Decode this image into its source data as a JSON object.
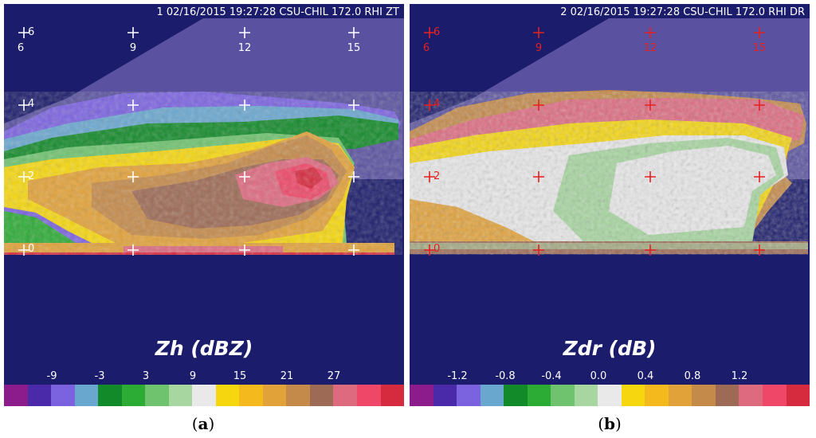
{
  "panels": [
    {
      "id": "a",
      "title": "1 02/16/2015 19:27:28 CSU-CHIL 172.0 RHI ZT",
      "x_labels": [
        "6",
        "9",
        "12",
        "15"
      ],
      "y_labels": [
        "6",
        "4",
        "2",
        "0"
      ],
      "scale_title": "Zh (dBZ)",
      "scale_ticks": [
        "-9",
        "-3",
        "3",
        "9",
        "15",
        "21",
        "27"
      ],
      "caption_letter": "a",
      "marker_color": "#ffffff"
    },
    {
      "id": "b",
      "title": "2 02/16/2015 19:27:28 CSU-CHIL 172.0 RHI DR",
      "x_labels": [
        "6",
        "9",
        "12",
        "15"
      ],
      "y_labels": [
        "6",
        "4",
        "2",
        "0"
      ],
      "scale_title": "Zdr (dB)",
      "scale_ticks": [
        "-1.2",
        "-0.8",
        "-0.4",
        "0.0",
        "0.4",
        "0.8",
        "1.2"
      ],
      "caption_letter": "b",
      "marker_color": "#e62020"
    }
  ],
  "colorbar": [
    "#8c1c8c",
    "#4a2aa8",
    "#7b63e0",
    "#6aa7cf",
    "#138a2a",
    "#2cab35",
    "#6fc36f",
    "#a7d6a0",
    "#e9e9e9",
    "#f6d70f",
    "#f3b91d",
    "#e2a23a",
    "#c48a4a",
    "#9d6a55",
    "#de6a80",
    "#ee4767",
    "#d62a3e"
  ],
  "colors": {
    "background": "#1b1c6b",
    "unscanned": "#5a52a0"
  }
}
